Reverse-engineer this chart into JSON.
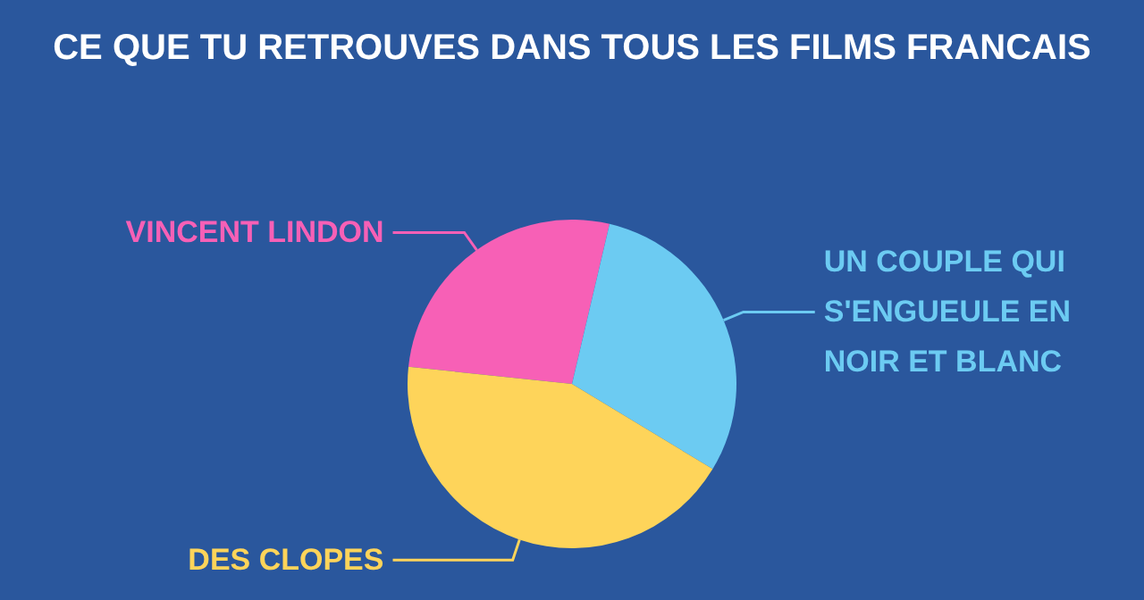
{
  "chart_data": {
    "type": "pie",
    "title": "CE QUE TU RETROUVES DANS TOUS LES FILMS FRANCAIS",
    "categories": [
      "VINCENT LINDON",
      "UN COUPLE QUI S'ENGUEULE EN NOIR ET BLANC",
      "DES CLOPES"
    ],
    "values": [
      27,
      30,
      43
    ],
    "colors": [
      "#f760b6",
      "#6ccbf2",
      "#fed45a"
    ],
    "legend": false
  }
}
